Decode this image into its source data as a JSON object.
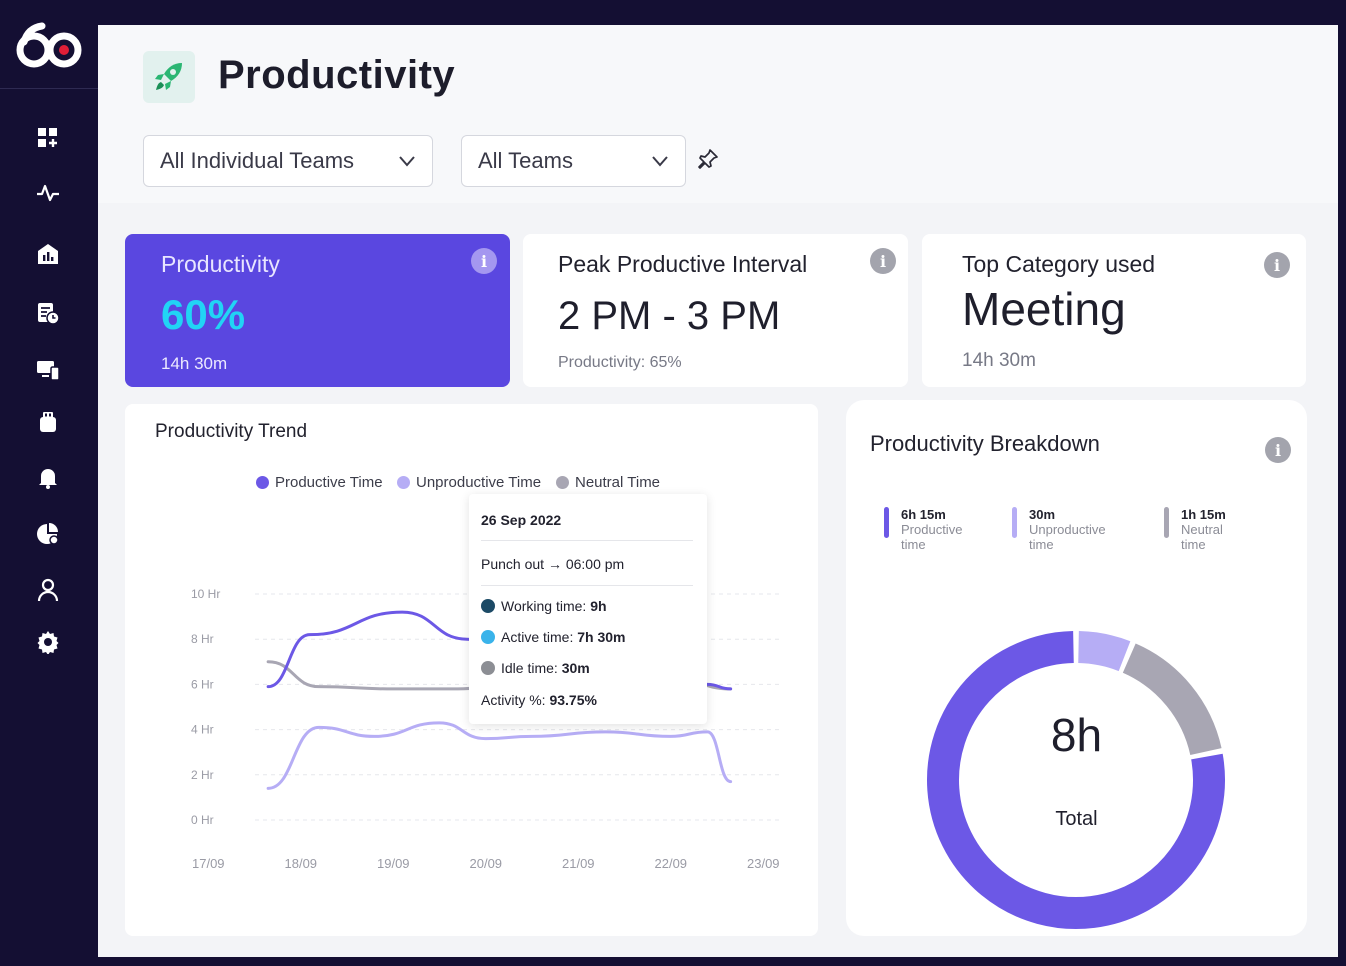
{
  "header": {
    "title": "Productivity",
    "dropdown_individual": "All Individual Teams",
    "dropdown_teams": "All Teams"
  },
  "sidebar": {
    "items": [
      {
        "icon": "dashboard-add-icon"
      },
      {
        "icon": "activity-pulse-icon"
      },
      {
        "icon": "analytics-chart-icon"
      },
      {
        "icon": "timesheet-clock-icon"
      },
      {
        "icon": "devices-icon"
      },
      {
        "icon": "usb-device-icon"
      },
      {
        "icon": "notifications-bell-icon"
      },
      {
        "icon": "reports-pie-icon"
      },
      {
        "icon": "user-profile-icon"
      },
      {
        "icon": "settings-gear-icon"
      }
    ]
  },
  "cards": {
    "productivity": {
      "label": "Productivity",
      "value": "60%",
      "sub": "14h 30m"
    },
    "peak": {
      "label": "Peak Productive Interval",
      "value": "2 PM - 3 PM",
      "sub": "Productivity: 65%"
    },
    "top_category": {
      "label": "Top Category used",
      "value": "Meeting",
      "sub": "14h 30m"
    }
  },
  "trend": {
    "title": "Productivity Trend",
    "legend": [
      "Productive Time",
      "Unproductive Time",
      "Neutral Time"
    ]
  },
  "tooltip": {
    "date": "26 Sep 2022",
    "punch_label": "Punch out",
    "punch_value": "06:00 pm",
    "working_label": "Working time:",
    "working_value": "9h",
    "active_label": "Active time:",
    "active_value": "7h 30m",
    "idle_label": "Idle time:",
    "idle_value": "30m",
    "activity_label": "Activity %:",
    "activity_value": "93.75%"
  },
  "breakdown": {
    "title": "Productivity Breakdown",
    "items": [
      {
        "value": "6h 15m",
        "line1": "Productive",
        "line2": "time"
      },
      {
        "value": "30m",
        "line1": "Unproductive",
        "line2": "time"
      },
      {
        "value": "1h 15m",
        "line1": "Neutral",
        "line2": "time"
      }
    ],
    "total_value": "8h",
    "total_label": "Total"
  },
  "colors": {
    "productive": "#6c58e6",
    "unproductive": "#b6adf5",
    "neutral": "#a8a6b3",
    "accent": "#5a47e0",
    "highlight": "#21d4f5"
  },
  "chart_data": {
    "type": "line",
    "x": [
      "17/09",
      "18/09",
      "19/09",
      "20/09",
      "21/09",
      "22/09",
      "23/09"
    ],
    "yticks": [
      "10 Hr",
      "8 Hr",
      "6 Hr",
      "4 Hr",
      "2 Hr",
      "0 Hr"
    ],
    "ylim": [
      0,
      10
    ],
    "series": [
      {
        "name": "Productive Time",
        "values": [
          [
            0.65,
            5.9
          ],
          [
            1.1,
            8.2
          ],
          [
            2.1,
            9.2
          ],
          [
            2.8,
            8.0
          ],
          [
            3.5,
            5.8
          ],
          [
            4.3,
            8.5
          ],
          [
            5.4,
            6.0
          ],
          [
            5.65,
            5.8
          ]
        ]
      },
      {
        "name": "Unproductive Time",
        "values": [
          [
            0.65,
            1.4
          ],
          [
            1.2,
            4.1
          ],
          [
            1.8,
            3.7
          ],
          [
            2.5,
            4.3
          ],
          [
            3.0,
            3.6
          ],
          [
            3.5,
            3.7
          ],
          [
            4.3,
            3.9
          ],
          [
            5.0,
            3.7
          ],
          [
            5.4,
            3.9
          ],
          [
            5.65,
            1.7
          ]
        ]
      },
      {
        "name": "Neutral Time",
        "values": [
          [
            0.65,
            7.0
          ],
          [
            1.2,
            5.9
          ],
          [
            2.0,
            5.8
          ],
          [
            2.7,
            5.8
          ],
          [
            3.5,
            6.3
          ],
          [
            4.3,
            6.4
          ],
          [
            5.0,
            6.3
          ],
          [
            5.65,
            5.8
          ]
        ]
      }
    ],
    "grid": true
  },
  "breakdown_chart": {
    "type": "pie",
    "labels": [
      "Productive",
      "Unproductive",
      "Neutral"
    ],
    "values": [
      6.25,
      0.5,
      1.25
    ]
  }
}
